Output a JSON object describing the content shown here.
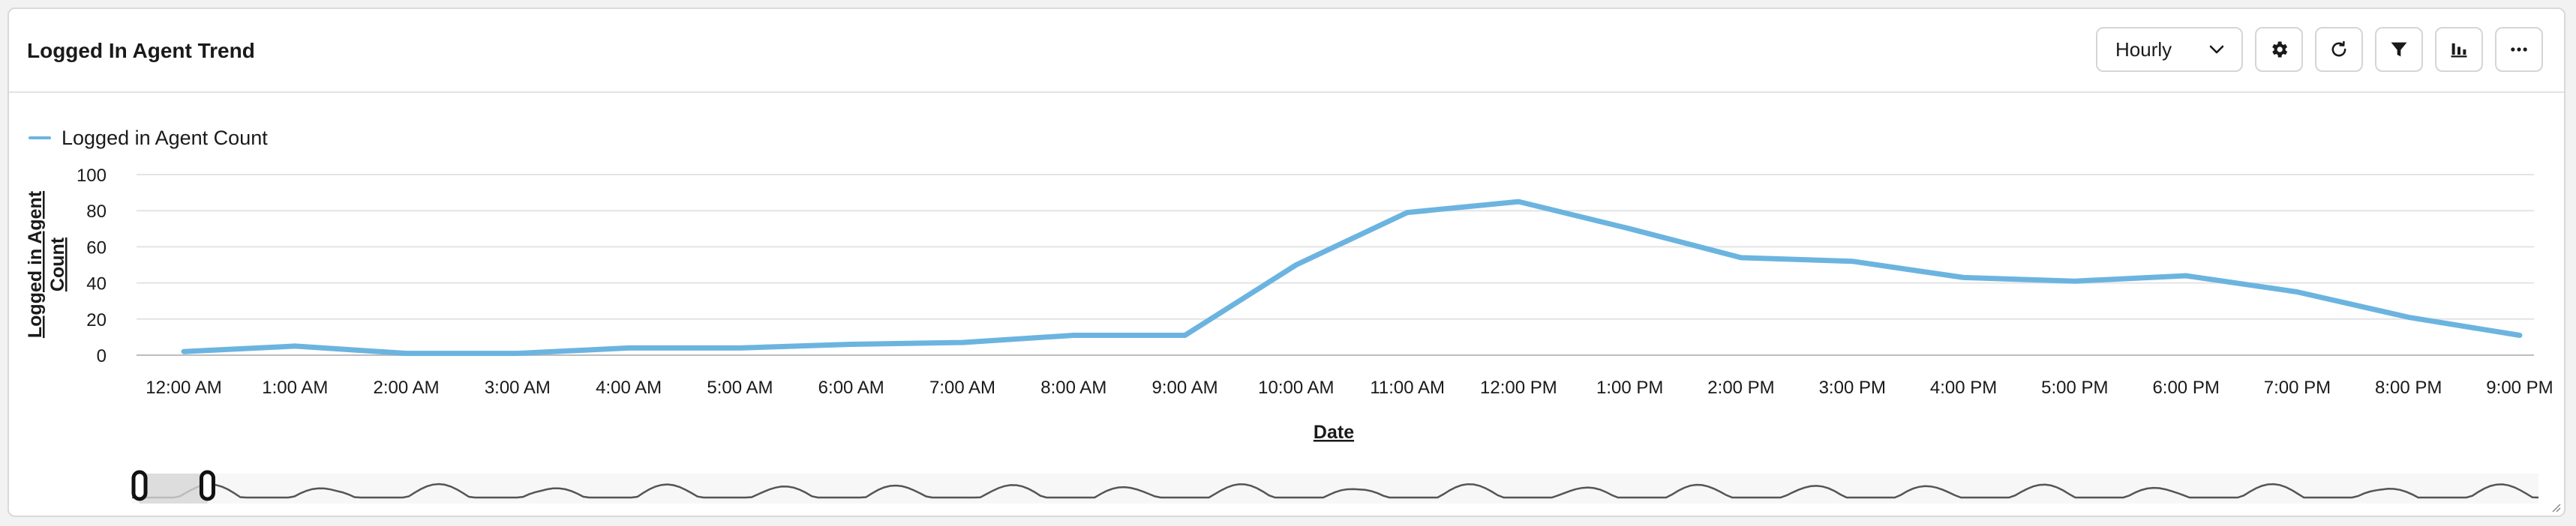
{
  "header": {
    "title": "Logged In Agent Trend",
    "interval_select": {
      "selected": "Hourly"
    },
    "buttons": [
      {
        "name": "settings-button",
        "icon": "gear-icon"
      },
      {
        "name": "refresh-button",
        "icon": "refresh-icon"
      },
      {
        "name": "filter-button",
        "icon": "filter-icon"
      },
      {
        "name": "chart-type-button",
        "icon": "bar-chart-icon"
      },
      {
        "name": "more-options-button",
        "icon": "more-horizontal-icon"
      }
    ]
  },
  "chart_data": {
    "type": "line",
    "xlabel": "Date",
    "ylabel": "Logged in Agent Count",
    "ylabel_lines": [
      "Logged in Agent",
      "Count"
    ],
    "ylim": [
      0,
      100
    ],
    "yticks": [
      0,
      20,
      40,
      60,
      80,
      100
    ],
    "grid": true,
    "legend_position": "top-left",
    "categories": [
      "12:00 AM",
      "1:00 AM",
      "2:00 AM",
      "3:00 AM",
      "4:00 AM",
      "5:00 AM",
      "6:00 AM",
      "7:00 AM",
      "8:00 AM",
      "9:00 AM",
      "10:00 AM",
      "11:00 AM",
      "12:00 PM",
      "1:00 PM",
      "2:00 PM",
      "3:00 PM",
      "4:00 PM",
      "5:00 PM",
      "6:00 PM",
      "7:00 PM",
      "8:00 PM",
      "9:00 PM"
    ],
    "series": [
      {
        "name": "Logged in Agent Count",
        "color": "#6cb4e0",
        "values": [
          2,
          5,
          1,
          1,
          4,
          4,
          6,
          7,
          11,
          11,
          50,
          79,
          85,
          70,
          54,
          52,
          43,
          41,
          44,
          35,
          21,
          11
        ]
      }
    ],
    "navigator": {
      "line_color": "#555555",
      "mask_color": "#d6d6d6",
      "selected_range": [
        0,
        0.0282
      ]
    }
  }
}
